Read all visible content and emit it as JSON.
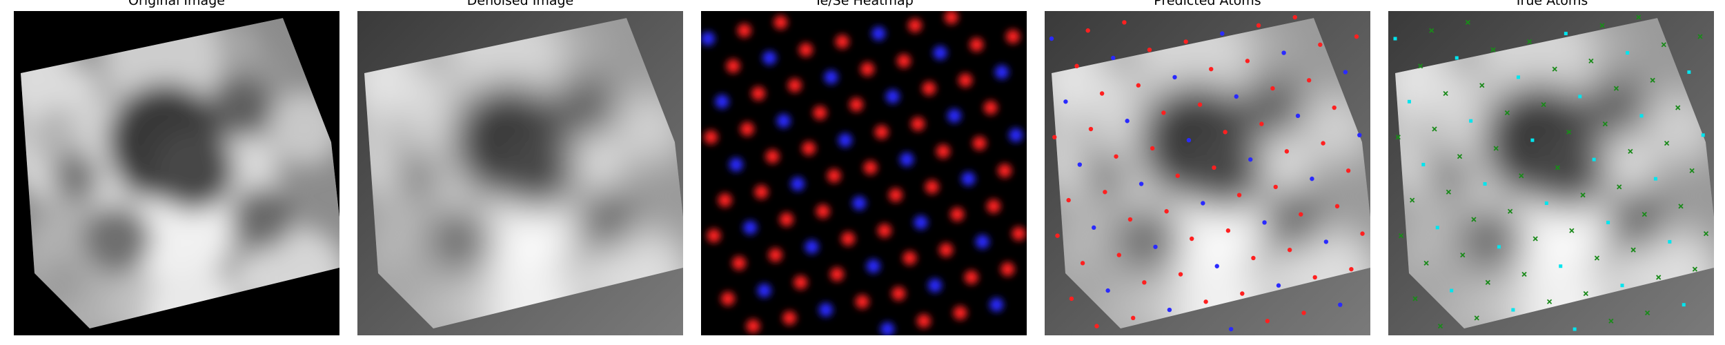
{
  "figure": {
    "panels": [
      {
        "id": "original",
        "title": "Original Image"
      },
      {
        "id": "denoised",
        "title": "Denoised Image"
      },
      {
        "id": "heatmap",
        "title": "Te/Se Heatmap"
      },
      {
        "id": "predicted",
        "title": "Predicted Atoms"
      },
      {
        "id": "true",
        "title": "True Atoms"
      }
    ],
    "colors": {
      "te": "#ff2020",
      "se": "#2a2aff",
      "true_te": "#1a8a1a",
      "true_se": "#00e5ee",
      "background": "#000000"
    }
  }
}
